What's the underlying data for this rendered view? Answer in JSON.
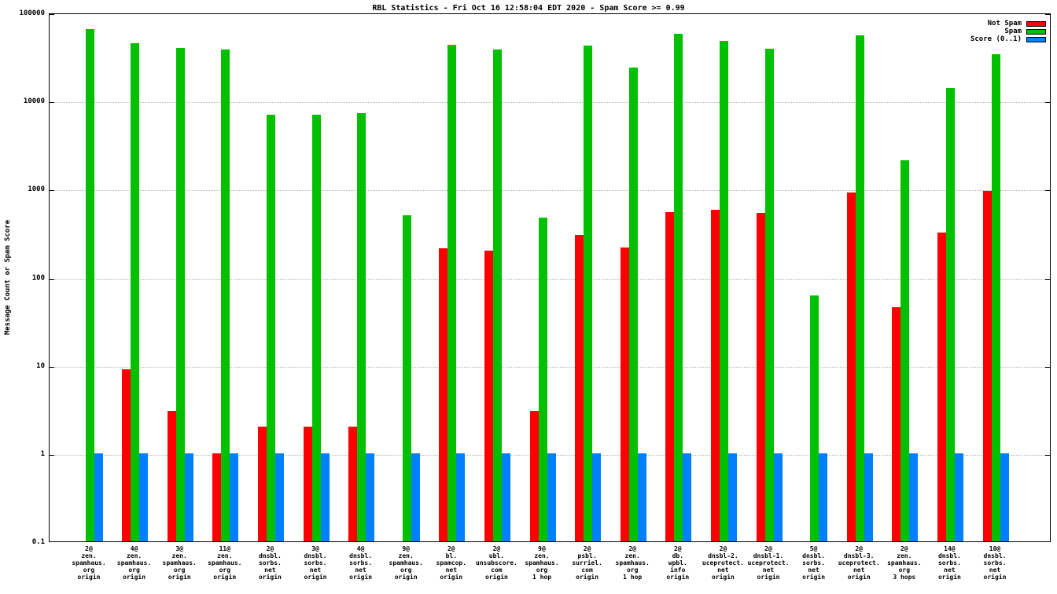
{
  "title": "RBL Statistics - Fri Oct 16 12:58:04 EDT 2020 - Spam Score >= 0.99",
  "ylabel": "Message Count or Spam Score",
  "legend": [
    {
      "label": "Not Spam",
      "color": "#ff0000"
    },
    {
      "label": "Spam",
      "color": "#00c000"
    },
    {
      "label": "Score (0..1)",
      "color": "#0080ff"
    }
  ],
  "chart_data": {
    "type": "bar",
    "log_scale": true,
    "grid": true,
    "legend_position": "top-right",
    "ylim": [
      0.1,
      100000
    ],
    "ytick_labels": [
      "100000",
      "10000",
      "1000",
      "100",
      "10",
      "1",
      "0.1"
    ],
    "categories": [
      [
        "2@",
        "zen.",
        "spamhaus.",
        "org",
        "origin"
      ],
      [
        "4@",
        "zen.",
        "spamhaus.",
        "org",
        "origin"
      ],
      [
        "3@",
        "zen.",
        "spamhaus.",
        "org",
        "origin"
      ],
      [
        "11@",
        "zen.",
        "spamhaus.",
        "org",
        "origin"
      ],
      [
        "2@",
        "dnsbl.",
        "sorbs.",
        "net",
        "origin"
      ],
      [
        "3@",
        "dnsbl.",
        "sorbs.",
        "net",
        "origin"
      ],
      [
        "4@",
        "dnsbl.",
        "sorbs.",
        "net",
        "origin"
      ],
      [
        "9@",
        "zen.",
        "spamhaus.",
        "org",
        "origin"
      ],
      [
        "2@",
        "bl.",
        "spamcop.",
        "net",
        "origin"
      ],
      [
        "2@",
        "ubl.",
        "unsubscore.",
        "com",
        "origin"
      ],
      [
        "9@",
        "zen.",
        "spamhaus.",
        "org",
        "1 hop"
      ],
      [
        "2@",
        "psbl.",
        "surriel.",
        "com",
        "origin"
      ],
      [
        "2@",
        "zen.",
        "spamhaus.",
        "org",
        "1 hop"
      ],
      [
        "2@",
        "db.",
        "wpbl.",
        "info",
        "origin"
      ],
      [
        "2@",
        "dnsbl-2.",
        "uceprotect.",
        "net",
        "origin"
      ],
      [
        "2@",
        "dnsbl-1.",
        "uceprotect.",
        "net",
        "origin"
      ],
      [
        "5@",
        "dnsbl.",
        "sorbs.",
        "net",
        "origin"
      ],
      [
        "2@",
        "dnsbl-3.",
        "uceprotect.",
        "net",
        "origin"
      ],
      [
        "2@",
        "zen.",
        "spamhaus.",
        "org",
        "3 hops"
      ],
      [
        "14@",
        "dnsbl.",
        "sorbs.",
        "net",
        "origin"
      ],
      [
        "10@",
        "dnsbl.",
        "sorbs.",
        "net",
        "origin"
      ]
    ],
    "series": [
      {
        "name": "Not Spam",
        "color": "#ff0000",
        "values": [
          null,
          9,
          3,
          1,
          2,
          2,
          2,
          null,
          210,
          200,
          3,
          300,
          215,
          540,
          580,
          530,
          null,
          900,
          45,
          320,
          950
        ]
      },
      {
        "name": "Spam",
        "color": "#00c000",
        "values": [
          65000,
          45000,
          40000,
          38000,
          7000,
          7000,
          7200,
          500,
          43000,
          38000,
          470,
          42000,
          24000,
          57000,
          48000,
          39000,
          62,
          55000,
          2100,
          14000,
          34000
        ]
      },
      {
        "name": "Score (0..1)",
        "color": "#0080ff",
        "values": [
          1,
          1,
          1,
          1,
          1,
          1,
          1,
          1,
          1,
          1,
          1,
          1,
          1,
          1,
          1,
          1,
          1,
          1,
          1,
          1,
          1
        ]
      }
    ]
  }
}
